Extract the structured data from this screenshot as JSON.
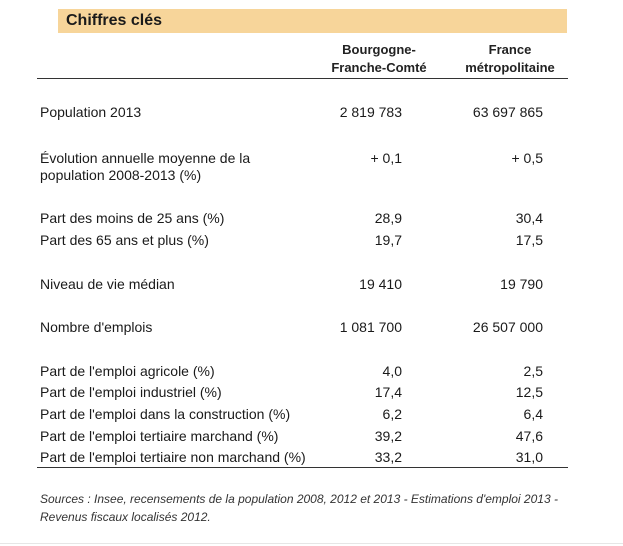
{
  "title": "Chiffres clés",
  "columns": [
    {
      "line1": "Bourgogne-",
      "line2": "Franche-Comté"
    },
    {
      "line1": "France",
      "line2": "métropolitaine"
    }
  ],
  "rows": [
    {
      "label": "Population 2013",
      "v1": "2 819 783",
      "v2": "63 697 865"
    },
    {
      "label": "Évolution annuelle moyenne de la",
      "label2": "population 2008-2013 (%)",
      "v1": "+ 0,1",
      "v2": "+ 0,5"
    },
    {
      "label": "Part des moins de 25 ans (%)",
      "v1": "28,9",
      "v2": "30,4"
    },
    {
      "label": "Part des 65 ans et plus (%)",
      "v1": "19,7",
      "v2": "17,5"
    },
    {
      "label": "Niveau de vie médian",
      "v1": "19 410",
      "v2": "19 790"
    },
    {
      "label": "Nombre d'emplois",
      "v1": "1 081 700",
      "v2": "26 507 000"
    },
    {
      "label": "Part de l'emploi agricole (%)",
      "v1": "4,0",
      "v2": "2,5"
    },
    {
      "label": "Part de l'emploi industriel (%)",
      "v1": "17,4",
      "v2": "12,5"
    },
    {
      "label": "Part de l'emploi dans la construction (%)",
      "v1": "6,2",
      "v2": "6,4"
    },
    {
      "label": "Part de l'emploi tertiaire  marchand (%)",
      "v1": "39,2",
      "v2": "47,6"
    },
    {
      "label": "Part de l'emploi tertiaire non marchand (%)",
      "v1": "33,2",
      "v2": "31,0"
    }
  ],
  "footnote": {
    "line1": "Sources : Insee, recensements de la population 2008, 2012 et 2013  - Estimations d'emploi  2013 -",
    "line2": "Revenus fiscaux localisés 2012."
  }
}
